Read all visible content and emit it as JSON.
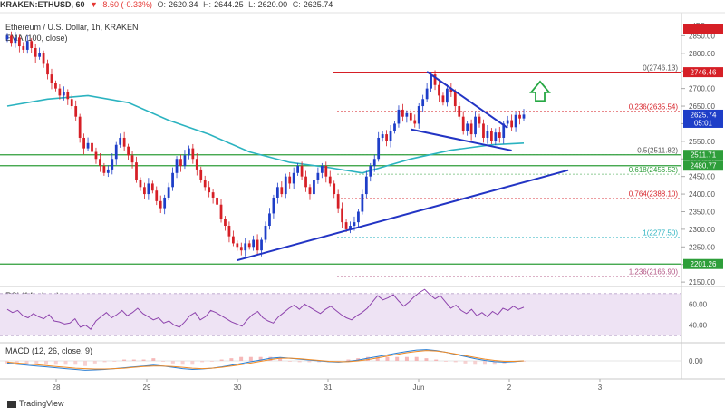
{
  "header": {
    "symbol": "KRAKEN:ETHUSD, 60",
    "change": "▼ -8.60 (-0.33%)",
    "ohlc": [
      {
        "label": "O:",
        "value": "2620.34"
      },
      {
        "label": "H:",
        "value": "2644.25"
      },
      {
        "label": "L:",
        "value": "2620.00"
      },
      {
        "label": "C:",
        "value": "2625.74"
      }
    ]
  },
  "legend": {
    "title": "Ethereum / U.S. Dollar, 1h, KRAKEN",
    "ema": "EMA (100, close)",
    "rsi": "RSI (14, close)",
    "macd": "MACD (12, 26, close, 9)"
  },
  "footer": {
    "brand": "TradingView"
  },
  "colors": {
    "up": "#1e3ec8",
    "down": "#d61f26",
    "ema": "#2bb3c0",
    "trend": "#2234c4",
    "support": "#2e9e3a",
    "resistance": "#d61f26",
    "fib": "#b05080",
    "arrow": "#27a844"
  },
  "chart_data": [
    {
      "type": "candlestick",
      "id": "price",
      "yaxis": {
        "label": "USD",
        "ticks": [
          2150,
          2200,
          2250,
          2300,
          2350,
          2400,
          2450,
          2500,
          2550,
          2600,
          2650,
          2700,
          2750,
          2800,
          2850
        ],
        "ylim": [
          2140,
          2900
        ]
      },
      "xaxis": {
        "ticks": [
          "28",
          "29",
          "30",
          "31",
          "Jun",
          "2",
          "3"
        ]
      },
      "price_tags": [
        {
          "value": 2870,
          "text": "",
          "color": "#d61f26"
        },
        {
          "value": 2746.46,
          "text": "2746.46",
          "color": "#d61f26"
        },
        {
          "value": 2625.74,
          "text": "2625.74",
          "sub": "05:01",
          "color": "#1e3ec8"
        },
        {
          "value": 2511.71,
          "text": "2511.71",
          "color": "#2e9e3a"
        },
        {
          "value": 2480.77,
          "text": "2480.77",
          "color": "#2e9e3a"
        },
        {
          "value": 2201.26,
          "text": "2201.26",
          "color": "#2e9e3a"
        }
      ],
      "fib_levels": [
        {
          "ratio": "0",
          "value": "2746.13",
          "y": 2746.13,
          "color": "#555555"
        },
        {
          "ratio": "0.236",
          "value": "2635.54",
          "y": 2635.54,
          "color": "#d61f26"
        },
        {
          "ratio": "0.5",
          "value": "2511.82",
          "y": 2511.82,
          "color": "#555555"
        },
        {
          "ratio": "0.618",
          "value": "2456.52",
          "y": 2456.52,
          "color": "#2e9e3a"
        },
        {
          "ratio": "0.764",
          "value": "2388.10",
          "y": 2388.1,
          "color": "#d61f26"
        },
        {
          "ratio": "1",
          "value": "2277.50",
          "y": 2277.5,
          "color": "#2bb3c0"
        },
        {
          "ratio": "1.236",
          "value": "2166.90",
          "y": 2166.9,
          "color": "#b05080"
        }
      ],
      "closes": [
        2850,
        2830,
        2845,
        2820,
        2810,
        2835,
        2815,
        2790,
        2800,
        2770,
        2740,
        2715,
        2700,
        2680,
        2690,
        2670,
        2650,
        2620,
        2560,
        2530,
        2545,
        2520,
        2500,
        2480,
        2460,
        2470,
        2500,
        2540,
        2560,
        2535,
        2510,
        2490,
        2440,
        2420,
        2400,
        2430,
        2410,
        2380,
        2360,
        2390,
        2420,
        2460,
        2500,
        2480,
        2510,
        2530,
        2500,
        2470,
        2440,
        2420,
        2405,
        2390,
        2370,
        2330,
        2310,
        2280,
        2260,
        2250,
        2240,
        2260,
        2250,
        2270,
        2240,
        2270,
        2310,
        2345,
        2390,
        2420,
        2400,
        2450,
        2430,
        2460,
        2480,
        2450,
        2420,
        2400,
        2440,
        2460,
        2480,
        2450,
        2430,
        2400,
        2360,
        2320,
        2300,
        2310,
        2320,
        2350,
        2400,
        2450,
        2480,
        2500,
        2560,
        2570,
        2550,
        2580,
        2600,
        2640,
        2620,
        2630,
        2610,
        2600,
        2650,
        2670,
        2700,
        2740,
        2710,
        2680,
        2660,
        2700,
        2690,
        2650,
        2620,
        2580,
        2600,
        2570,
        2620,
        2600,
        2560,
        2580,
        2550,
        2575,
        2560,
        2600,
        2610,
        2590,
        2625,
        2615,
        2626
      ],
      "ema": [
        [
          0,
          2650
        ],
        [
          10,
          2670
        ],
        [
          20,
          2680
        ],
        [
          30,
          2660
        ],
        [
          40,
          2610
        ],
        [
          50,
          2570
        ],
        [
          60,
          2520
        ],
        [
          70,
          2490
        ],
        [
          80,
          2475
        ],
        [
          88,
          2460
        ],
        [
          94,
          2480
        ],
        [
          100,
          2500
        ],
        [
          110,
          2525
        ],
        [
          120,
          2540
        ],
        [
          128,
          2545
        ]
      ],
      "lines": [
        {
          "kind": "trend",
          "points": [
            [
              57,
              2212
            ],
            [
              139,
              2468
            ]
          ]
        },
        {
          "kind": "trend",
          "points": [
            [
              104,
              2748
            ],
            [
              124,
              2588
            ]
          ]
        },
        {
          "kind": "trend",
          "points": [
            [
              100,
              2584
            ],
            [
              125,
              2524
            ]
          ]
        },
        {
          "kind": "resistance",
          "y": 2746.46
        },
        {
          "kind": "support",
          "y": 2511.71
        },
        {
          "kind": "support",
          "y": 2480.77
        },
        {
          "kind": "support",
          "y": 2201.26
        }
      ]
    },
    {
      "type": "line",
      "id": "rsi",
      "yaxis": {
        "ticks": [
          40,
          60
        ],
        "ylim": [
          25,
          75
        ]
      },
      "series": [
        {
          "values": [
            55,
            52,
            54,
            49,
            47,
            51,
            48,
            46,
            50,
            44,
            43,
            41,
            42,
            46,
            38,
            40,
            36,
            44,
            48,
            52,
            47,
            50,
            54,
            49,
            52,
            56,
            51,
            48,
            45,
            47,
            42,
            44,
            40,
            38,
            43,
            49,
            52,
            45,
            48,
            54,
            52,
            49,
            46,
            43,
            41,
            39,
            45,
            50,
            53,
            47,
            44,
            42,
            48,
            52,
            56,
            59,
            55,
            60,
            57,
            54,
            51,
            55,
            58,
            54,
            50,
            47,
            45,
            49,
            52,
            56,
            62,
            68,
            64,
            66,
            69,
            63,
            58,
            62,
            67,
            71,
            74,
            69,
            65,
            68,
            62,
            56,
            59,
            54,
            51,
            55,
            49,
            52,
            48,
            53,
            50,
            56,
            54,
            58,
            55,
            57
          ]
        }
      ]
    },
    {
      "type": "line",
      "id": "macd",
      "yaxis": {
        "ticks": [
          0
        ],
        "tick_labels": [
          "0.00"
        ],
        "ylim": [
          -40,
          40
        ]
      },
      "series": [
        {
          "values": [
            -5,
            -8,
            -10,
            -12,
            -14,
            -16,
            -18,
            -20,
            -22,
            -21,
            -20,
            -18,
            -16,
            -14,
            -12,
            -10,
            -12,
            -15,
            -18,
            -20,
            -19,
            -17,
            -14,
            -10,
            -6,
            -2,
            2,
            6,
            8,
            6,
            4,
            2,
            0,
            -2,
            -3,
            -1,
            2,
            6,
            10,
            14,
            18,
            22,
            25,
            26,
            24,
            20,
            15,
            10,
            5,
            1,
            -2,
            -3,
            -2,
            0
          ]
        },
        {
          "values": [
            -3,
            -5,
            -7,
            -9,
            -11,
            -13,
            -15,
            -17,
            -18,
            -19,
            -19,
            -18,
            -17,
            -15,
            -13,
            -12,
            -12,
            -13,
            -15,
            -17,
            -18,
            -17,
            -15,
            -12,
            -9,
            -5,
            -1,
            3,
            6,
            6,
            5,
            3,
            1,
            -1,
            -2,
            -2,
            0,
            3,
            7,
            11,
            15,
            19,
            22,
            24,
            23,
            20,
            16,
            12,
            8,
            4,
            1,
            -1,
            -1,
            0
          ]
        }
      ]
    }
  ]
}
